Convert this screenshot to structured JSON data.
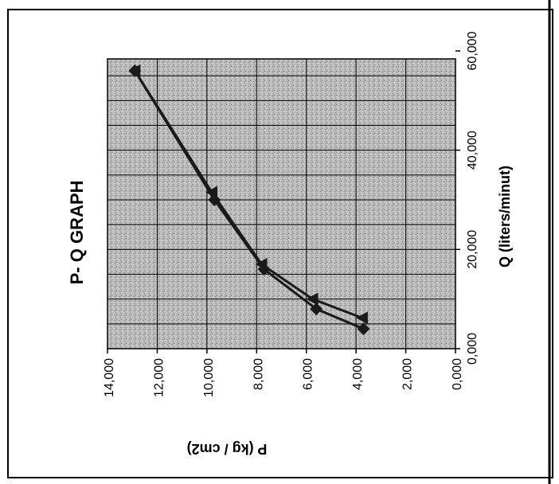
{
  "chart_data": {
    "type": "line",
    "title": "P- Q GRAPH",
    "xlabel": "Q  (liters/minut)",
    "ylabel": "P  (kg / cm2)",
    "xlim": [
      0,
      60000
    ],
    "ylim": [
      0,
      14000
    ],
    "x_ticks": [
      "0,000",
      "20,000",
      "40,000",
      "60,000"
    ],
    "y_ticks": [
      "0,000",
      "2,000",
      "4,000",
      "6,000",
      "8,000",
      "10,000",
      "12,000",
      "14,000"
    ],
    "grid": true,
    "rotation": "rotated 90 degrees counter-clockwise",
    "series": [
      {
        "marker": "diamond",
        "color": "#1a1a1a",
        "points": [
          {
            "x": 4000,
            "y": 3700
          },
          {
            "x": 8000,
            "y": 5600
          },
          {
            "x": 16000,
            "y": 7700
          },
          {
            "x": 30000,
            "y": 9700
          },
          {
            "x": 56000,
            "y": 12900
          }
        ]
      },
      {
        "marker": "triangle",
        "color": "#1a1a1a",
        "points": [
          {
            "x": 6200,
            "y": 3750
          },
          {
            "x": 10000,
            "y": 5750
          },
          {
            "x": 17000,
            "y": 7800
          },
          {
            "x": 31500,
            "y": 9800
          },
          {
            "x": 56000,
            "y": 12900
          }
        ]
      }
    ]
  }
}
